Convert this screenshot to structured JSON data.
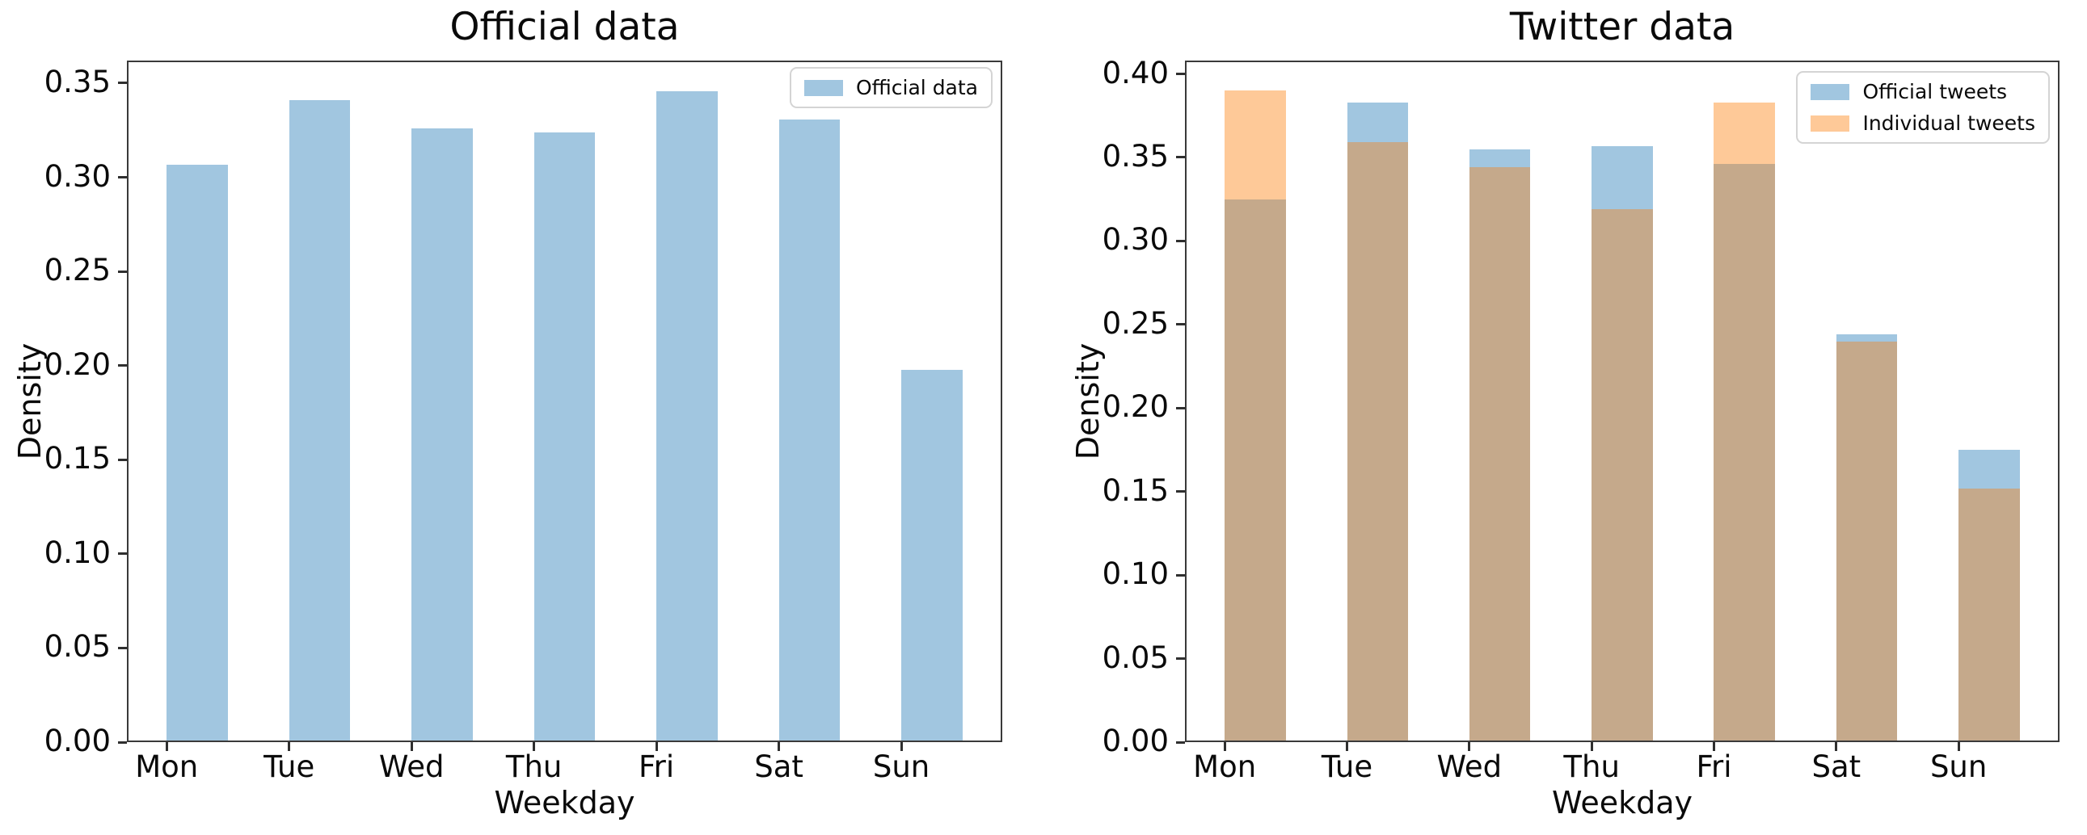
{
  "figure_background": "#ffffff",
  "colors": {
    "official_blue": "#a1c6e0",
    "individual_orange": "#fec998",
    "overlap_brown": "#c5a98b",
    "spine": "#3a3a3a",
    "text": "#0a0a0a",
    "legend_border": "#d4d4d4"
  },
  "chart_data": [
    {
      "type": "bar",
      "title": "Official data",
      "xlabel": "Weekday",
      "ylabel": "Density",
      "categories": [
        "Mon",
        "Tue",
        "Wed",
        "Thu",
        "Fri",
        "Sat",
        "Sun"
      ],
      "series": [
        {
          "name": "Official data",
          "color_key": "official_blue",
          "values": [
            0.306,
            0.34,
            0.325,
            0.323,
            0.345,
            0.33,
            0.197
          ]
        }
      ],
      "ylim": [
        0,
        0.362
      ],
      "yticks": [
        0.0,
        0.05,
        0.1,
        0.15,
        0.2,
        0.25,
        0.3,
        0.35
      ],
      "ytick_labels": [
        "0.00",
        "0.05",
        "0.10",
        "0.15",
        "0.20",
        "0.25",
        "0.30",
        "0.35"
      ],
      "grid": false,
      "legend_position": "upper right",
      "bar_width_fraction": 0.5,
      "bar_align": "edge"
    },
    {
      "type": "bar",
      "title": "Twitter data",
      "xlabel": "Weekday",
      "ylabel": "Density",
      "categories": [
        "Mon",
        "Tue",
        "Wed",
        "Thu",
        "Fri",
        "Sat",
        "Sun"
      ],
      "series": [
        {
          "name": "Official tweets",
          "color_key": "official_blue",
          "values": [
            0.324,
            0.382,
            0.354,
            0.356,
            0.345,
            0.243,
            0.174
          ]
        },
        {
          "name": "Individual tweets",
          "color_key": "individual_orange",
          "values": [
            0.389,
            0.358,
            0.343,
            0.318,
            0.382,
            0.239,
            0.151
          ]
        }
      ],
      "overlay": true,
      "overlap_color_key": "overlap_brown",
      "ylim": [
        0,
        0.408
      ],
      "yticks": [
        0.0,
        0.05,
        0.1,
        0.15,
        0.2,
        0.25,
        0.3,
        0.35,
        0.4
      ],
      "ytick_labels": [
        "0.00",
        "0.05",
        "0.10",
        "0.15",
        "0.20",
        "0.25",
        "0.30",
        "0.35",
        "0.40"
      ],
      "grid": false,
      "legend_position": "upper right",
      "bar_width_fraction": 0.5,
      "bar_align": "edge"
    }
  ]
}
